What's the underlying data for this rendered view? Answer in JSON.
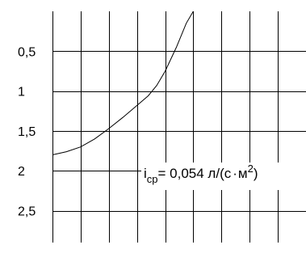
{
  "chart_data": {
    "type": "line",
    "title": "",
    "xlabel": "",
    "ylabel": "",
    "y_tick_labels": [
      "0,5",
      "1",
      "1,5",
      "2",
      "2,5"
    ],
    "y_tick_values": [
      0.5,
      1.0,
      1.5,
      2.0,
      2.5
    ],
    "y_axis_direction": "inverted",
    "ylim": [
      0.0,
      2.9
    ],
    "grid": true,
    "series": [
      {
        "x": [
          0.0,
          0.5,
          1.0,
          1.5,
          2.0,
          2.5,
          3.0,
          3.4,
          3.7,
          4.0,
          4.4,
          4.75,
          5.0
        ],
        "values": [
          1.8,
          1.76,
          1.7,
          1.6,
          1.47,
          1.33,
          1.18,
          1.06,
          0.93,
          0.75,
          0.45,
          0.15,
          0.0
        ]
      }
    ],
    "xlim": [
      0.0,
      9.0
    ],
    "annotation": {
      "main": "i",
      "sub": "ср",
      "text": "= 0,054 л/(с",
      "dot": "·",
      "unit": "м",
      "sup": "2",
      "close": ")"
    }
  }
}
